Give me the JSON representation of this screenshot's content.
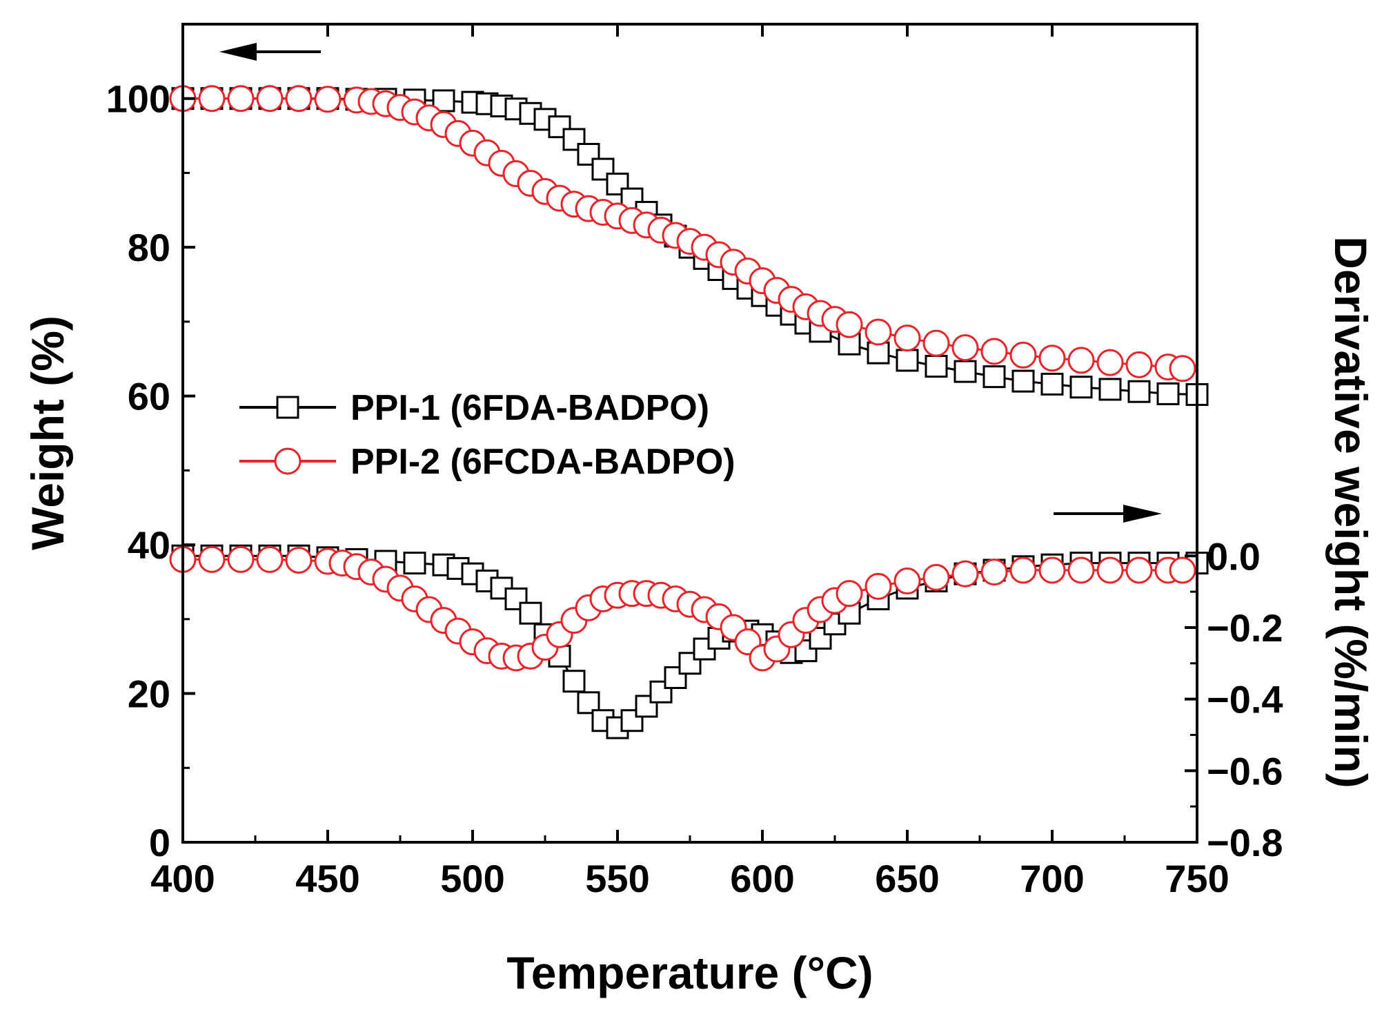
{
  "chart_data": {
    "type": "line",
    "xlabel": "Temperature (°C)",
    "ylabel_left": "Weight (%)",
    "ylabel_right": "Derivative weight (%/min)",
    "xlim": [
      400,
      750
    ],
    "ylim_left": [
      0,
      110
    ],
    "ylim_right": [
      -0.8,
      0.0
    ],
    "right_axis_display_top": 0.0,
    "x_ticks": [
      400,
      450,
      500,
      550,
      600,
      650,
      700,
      750
    ],
    "y_left_ticks": [
      0,
      20,
      40,
      60,
      80,
      100
    ],
    "y_right_ticks": [
      0.0,
      -0.2,
      -0.4,
      -0.6,
      -0.8
    ],
    "x_tick_labels": [
      "400",
      "450",
      "500",
      "550",
      "600",
      "650",
      "700",
      "750"
    ],
    "y_left_tick_labels": [
      "0",
      "20",
      "40",
      "60",
      "80",
      "100"
    ],
    "y_right_tick_labels": [
      "0.0",
      "−0.2",
      "−0.4",
      "−0.6",
      "−0.8"
    ],
    "legend_placement": "center-left",
    "series": [
      {
        "name": "PPI-1 (6FDA-BADPO)",
        "color": "#000000",
        "marker": "square",
        "tga": {
          "x": [
            400,
            410,
            420,
            430,
            440,
            450,
            460,
            470,
            480,
            490,
            500,
            505,
            510,
            515,
            520,
            525,
            530,
            535,
            540,
            545,
            550,
            555,
            560,
            565,
            570,
            575,
            580,
            585,
            590,
            595,
            600,
            605,
            610,
            615,
            620,
            630,
            640,
            650,
            660,
            670,
            680,
            690,
            700,
            710,
            720,
            730,
            740,
            750
          ],
          "y": [
            100.0,
            100.0,
            100.0,
            100.0,
            100.0,
            100.0,
            99.9,
            99.9,
            99.8,
            99.7,
            99.5,
            99.3,
            99.0,
            98.6,
            98.0,
            97.2,
            96.2,
            94.5,
            92.5,
            90.5,
            88.5,
            86.5,
            84.7,
            83.0,
            81.5,
            80.0,
            78.5,
            77.0,
            75.8,
            74.5,
            73.5,
            72.2,
            71.0,
            69.8,
            68.7,
            67.0,
            65.8,
            64.8,
            64.0,
            63.3,
            62.6,
            62.0,
            61.6,
            61.2,
            60.9,
            60.6,
            60.3,
            60.2
          ]
        },
        "dtg": {
          "x": [
            400,
            410,
            420,
            430,
            440,
            450,
            460,
            470,
            480,
            490,
            495,
            500,
            505,
            510,
            515,
            520,
            525,
            530,
            535,
            540,
            545,
            550,
            555,
            560,
            565,
            570,
            575,
            580,
            585,
            590,
            595,
            600,
            605,
            610,
            615,
            620,
            625,
            630,
            640,
            650,
            660,
            670,
            680,
            690,
            700,
            710,
            720,
            730,
            740,
            750
          ],
          "y": [
            0.0,
            0.0,
            0.0,
            0.0,
            0.0,
            -0.005,
            -0.01,
            -0.015,
            -0.02,
            -0.025,
            -0.035,
            -0.05,
            -0.07,
            -0.09,
            -0.12,
            -0.16,
            -0.22,
            -0.28,
            -0.35,
            -0.41,
            -0.46,
            -0.48,
            -0.46,
            -0.42,
            -0.38,
            -0.34,
            -0.3,
            -0.26,
            -0.23,
            -0.21,
            -0.21,
            -0.22,
            -0.24,
            -0.27,
            -0.265,
            -0.23,
            -0.19,
            -0.16,
            -0.12,
            -0.09,
            -0.07,
            -0.05,
            -0.04,
            -0.03,
            -0.025,
            -0.02,
            -0.02,
            -0.02,
            -0.02,
            -0.02
          ]
        }
      },
      {
        "name": "PPI-2 (6FCDA-BADPO)",
        "color": "#e8242a",
        "marker": "circle",
        "tga": {
          "x": [
            400,
            410,
            420,
            430,
            440,
            450,
            460,
            465,
            470,
            475,
            480,
            485,
            490,
            495,
            500,
            505,
            510,
            515,
            520,
            525,
            530,
            535,
            540,
            545,
            550,
            555,
            560,
            565,
            570,
            575,
            580,
            585,
            590,
            595,
            600,
            605,
            610,
            615,
            620,
            625,
            630,
            640,
            650,
            660,
            670,
            680,
            690,
            700,
            710,
            720,
            730,
            740,
            745
          ],
          "y": [
            100.0,
            100.0,
            100.0,
            100.0,
            100.0,
            99.9,
            99.8,
            99.6,
            99.3,
            98.8,
            98.2,
            97.4,
            96.5,
            95.3,
            94.0,
            92.7,
            91.3,
            89.9,
            88.6,
            87.5,
            86.6,
            85.8,
            85.2,
            84.7,
            84.2,
            83.6,
            83.0,
            82.3,
            81.6,
            80.8,
            80.0,
            79.0,
            78.0,
            76.8,
            75.5,
            74.2,
            73.0,
            72.0,
            71.1,
            70.3,
            69.6,
            68.6,
            67.8,
            67.1,
            66.5,
            66.0,
            65.5,
            65.1,
            64.8,
            64.5,
            64.2,
            63.9,
            63.7
          ]
        },
        "dtg": {
          "x": [
            400,
            410,
            420,
            430,
            440,
            450,
            455,
            460,
            465,
            470,
            475,
            480,
            485,
            490,
            495,
            500,
            505,
            510,
            515,
            520,
            525,
            530,
            535,
            540,
            545,
            550,
            555,
            560,
            565,
            570,
            575,
            580,
            585,
            590,
            595,
            600,
            605,
            610,
            615,
            620,
            625,
            630,
            640,
            650,
            660,
            670,
            680,
            690,
            700,
            710,
            720,
            730,
            740,
            745
          ],
          "y": [
            -0.01,
            -0.01,
            -0.01,
            -0.01,
            -0.012,
            -0.015,
            -0.02,
            -0.03,
            -0.045,
            -0.065,
            -0.09,
            -0.12,
            -0.15,
            -0.18,
            -0.21,
            -0.24,
            -0.265,
            -0.28,
            -0.285,
            -0.28,
            -0.255,
            -0.22,
            -0.18,
            -0.145,
            -0.12,
            -0.11,
            -0.105,
            -0.105,
            -0.11,
            -0.12,
            -0.135,
            -0.15,
            -0.17,
            -0.2,
            -0.24,
            -0.285,
            -0.26,
            -0.22,
            -0.18,
            -0.15,
            -0.125,
            -0.105,
            -0.085,
            -0.07,
            -0.06,
            -0.05,
            -0.045,
            -0.04,
            -0.04,
            -0.04,
            -0.04,
            -0.04,
            -0.04,
            -0.04
          ]
        }
      }
    ],
    "annotations": [
      {
        "type": "arrow",
        "direction": "left",
        "axis": "left"
      },
      {
        "type": "arrow",
        "direction": "right",
        "axis": "right"
      }
    ]
  }
}
